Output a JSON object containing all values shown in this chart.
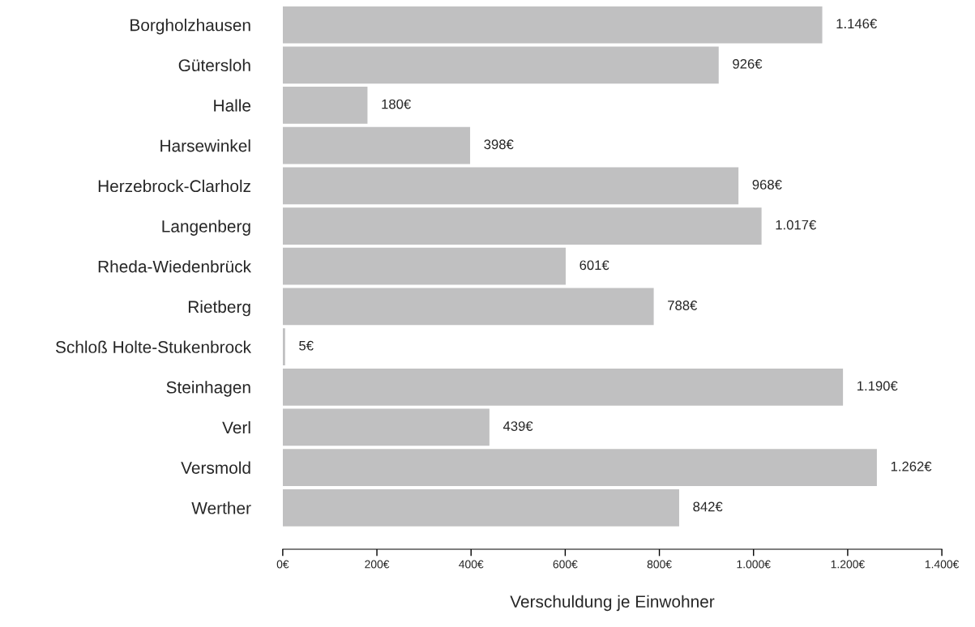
{
  "chart_data": {
    "type": "bar",
    "orientation": "horizontal",
    "xlabel": "Verschuldung je Einwohner",
    "categories": [
      "Borgholzhausen",
      "Gütersloh",
      "Halle",
      "Harsewinkel",
      "Herzebrock-Clarholz",
      "Langenberg",
      "Rheda-Wiedenbrück",
      "Rietberg",
      "Schloß Holte-Stukenbrock",
      "Steinhagen",
      "Verl",
      "Versmold",
      "Werther"
    ],
    "values": [
      1146,
      926,
      180,
      398,
      968,
      1017,
      601,
      788,
      5,
      1190,
      439,
      1262,
      842
    ],
    "value_labels": [
      "1.146€",
      "926€",
      "180€",
      "398€",
      "968€",
      "1.017€",
      "601€",
      "788€",
      "5€",
      "1.190€",
      "439€",
      "1.262€",
      "842€"
    ],
    "color": "#c0c0c1",
    "xlim": [
      0,
      1400
    ],
    "xticks": [
      {
        "value": 0,
        "label": "0€"
      },
      {
        "value": 200,
        "label": "200€"
      },
      {
        "value": 400,
        "label": "400€"
      },
      {
        "value": 600,
        "label": "600€"
      },
      {
        "value": 800,
        "label": "800€"
      },
      {
        "value": 1000,
        "label": "1.000€"
      },
      {
        "value": 1200,
        "label": "1.200€"
      },
      {
        "value": 1400,
        "label": "1.400€"
      }
    ],
    "grid": false,
    "legend": false
  }
}
